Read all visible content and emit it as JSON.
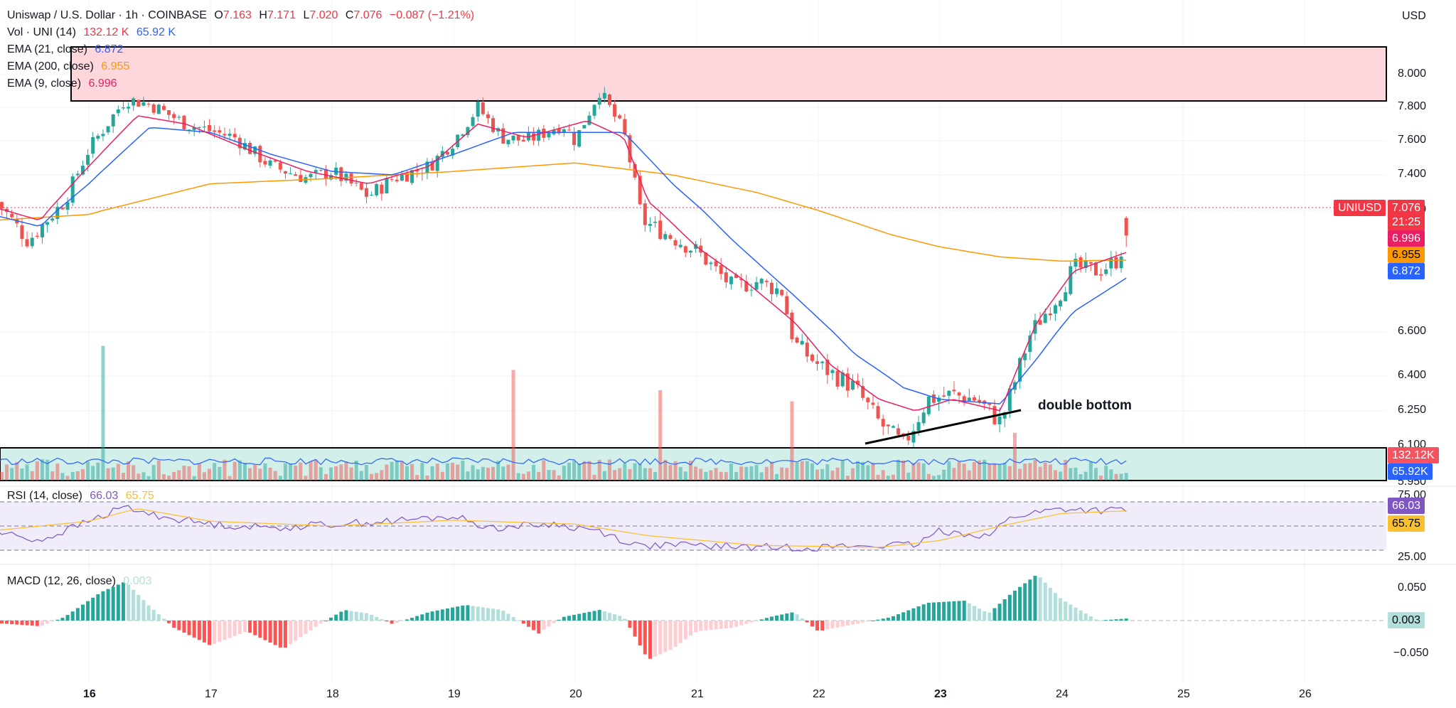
{
  "header": {
    "symbol": "Uniswap / U.S. Dollar · 1h · COINBASE",
    "ohlc": [
      {
        "key": "O",
        "value": "7.163"
      },
      {
        "key": "H",
        "value": "7.171"
      },
      {
        "key": "L",
        "value": "7.020"
      },
      {
        "key": "C",
        "value": "7.076"
      }
    ],
    "change": "−0.087 (−1.21%)",
    "currency": "USD"
  },
  "legends": {
    "vol": {
      "label": "Vol · UNI (14)",
      "v1": "132.12 K",
      "v2": "65.92 K"
    },
    "ema21": {
      "label": "EMA (21, close)",
      "value": "6.872"
    },
    "ema200": {
      "label": "EMA (200, close)",
      "value": "6.955"
    },
    "ema9": {
      "label": "EMA (9, close)",
      "value": "6.996"
    },
    "rsi": {
      "label": "RSI (14, close)",
      "v1": "66.03",
      "v2": "65.75"
    },
    "macd": {
      "label": "MACD (12, 26, close)",
      "value": "0.003"
    }
  },
  "price_axis": [
    "8.000",
    "7.800",
    "7.600",
    "7.400",
    "7.200",
    "6.600",
    "6.400",
    "6.250",
    "6.100",
    "5.950"
  ],
  "tags": {
    "symbol": "UNIUSD",
    "price": "7.076",
    "countdown": "21:25",
    "ema9": "6.996",
    "ema200": "6.955",
    "ema21": "6.872",
    "vol1": "132.12K",
    "vol2": "65.92K",
    "rsi1": "66.03",
    "rsi2": "65.75",
    "macd": "0.003"
  },
  "rsi_axis": [
    "75.00",
    "25.00"
  ],
  "macd_axis": [
    "0.050",
    "−0.050"
  ],
  "x_axis": [
    "16",
    "17",
    "18",
    "19",
    "20",
    "21",
    "22",
    "23",
    "24",
    "25",
    "26"
  ],
  "annotation": "double bottom",
  "colors": {
    "up": "#26a69a",
    "down": "#ef5350",
    "ema9": "#e91e63",
    "ema21": "#2962ff",
    "ema200": "#ff9800",
    "rsi": "#7e57c2",
    "rsi_ma": "#fbc02d",
    "zone": "#fdd7db",
    "tag_price": "#f23645"
  },
  "chart_data": [
    {
      "type": "candlestick",
      "title": "Uniswap / U.S. Dollar · 1h · COINBASE",
      "x": [
        "16",
        "17",
        "18",
        "19",
        "20",
        "21",
        "22",
        "23",
        "24",
        "25",
        "26"
      ],
      "ylim": [
        5.9,
        8.05
      ],
      "close_path": [
        [
          15.2,
          7.28
        ],
        [
          15.5,
          7.05
        ],
        [
          15.8,
          7.25
        ],
        [
          16.0,
          7.55
        ],
        [
          16.3,
          7.85
        ],
        [
          16.5,
          7.82
        ],
        [
          16.8,
          7.7
        ],
        [
          17.2,
          7.62
        ],
        [
          17.5,
          7.45
        ],
        [
          17.8,
          7.38
        ],
        [
          18.0,
          7.42
        ],
        [
          18.3,
          7.28
        ],
        [
          18.5,
          7.38
        ],
        [
          18.8,
          7.45
        ],
        [
          19.0,
          7.6
        ],
        [
          19.2,
          7.8
        ],
        [
          19.4,
          7.62
        ],
        [
          19.6,
          7.6
        ],
        [
          19.9,
          7.7
        ],
        [
          20.0,
          7.6
        ],
        [
          20.2,
          7.9
        ],
        [
          20.4,
          7.65
        ],
        [
          20.55,
          7.15
        ],
        [
          20.7,
          7.1
        ],
        [
          21.0,
          7.0
        ],
        [
          21.3,
          6.82
        ],
        [
          21.5,
          6.85
        ],
        [
          21.7,
          6.8
        ],
        [
          21.8,
          6.55
        ],
        [
          22.0,
          6.45
        ],
        [
          22.3,
          6.35
        ],
        [
          22.5,
          6.2
        ],
        [
          22.7,
          6.1
        ],
        [
          22.9,
          6.3
        ],
        [
          23.1,
          6.32
        ],
        [
          23.3,
          6.3
        ],
        [
          23.5,
          6.2
        ],
        [
          23.6,
          6.35
        ],
        [
          23.75,
          6.6
        ],
        [
          23.9,
          6.72
        ],
        [
          24.0,
          6.8
        ],
        [
          24.1,
          6.92
        ],
        [
          24.3,
          6.9
        ],
        [
          24.45,
          6.95
        ],
        [
          24.55,
          7.08
        ]
      ],
      "ema9_path": [
        [
          15.2,
          7.22
        ],
        [
          15.6,
          7.15
        ],
        [
          16.0,
          7.45
        ],
        [
          16.4,
          7.75
        ],
        [
          16.8,
          7.7
        ],
        [
          17.3,
          7.55
        ],
        [
          17.8,
          7.42
        ],
        [
          18.3,
          7.35
        ],
        [
          18.8,
          7.45
        ],
        [
          19.2,
          7.7
        ],
        [
          19.6,
          7.62
        ],
        [
          20.1,
          7.72
        ],
        [
          20.4,
          7.62
        ],
        [
          20.6,
          7.25
        ],
        [
          21.0,
          7.02
        ],
        [
          21.4,
          6.85
        ],
        [
          21.8,
          6.65
        ],
        [
          22.1,
          6.45
        ],
        [
          22.5,
          6.3
        ],
        [
          22.8,
          6.25
        ],
        [
          23.1,
          6.3
        ],
        [
          23.5,
          6.25
        ],
        [
          23.8,
          6.65
        ],
        [
          24.1,
          6.9
        ],
        [
          24.55,
          6.996
        ]
      ],
      "ema21_path": [
        [
          15.2,
          7.18
        ],
        [
          15.6,
          7.12
        ],
        [
          16.0,
          7.35
        ],
        [
          16.5,
          7.68
        ],
        [
          17.0,
          7.65
        ],
        [
          17.5,
          7.52
        ],
        [
          18.0,
          7.42
        ],
        [
          18.5,
          7.4
        ],
        [
          19.0,
          7.52
        ],
        [
          19.5,
          7.65
        ],
        [
          20.0,
          7.65
        ],
        [
          20.4,
          7.65
        ],
        [
          20.8,
          7.35
        ],
        [
          21.3,
          7.05
        ],
        [
          21.8,
          6.78
        ],
        [
          22.3,
          6.5
        ],
        [
          22.7,
          6.35
        ],
        [
          23.0,
          6.3
        ],
        [
          23.5,
          6.28
        ],
        [
          23.8,
          6.48
        ],
        [
          24.1,
          6.7
        ],
        [
          24.55,
          6.872
        ]
      ],
      "ema200_path": [
        [
          15.2,
          7.15
        ],
        [
          16.0,
          7.18
        ],
        [
          17.0,
          7.35
        ],
        [
          18.0,
          7.38
        ],
        [
          19.0,
          7.42
        ],
        [
          20.0,
          7.47
        ],
        [
          20.8,
          7.4
        ],
        [
          21.5,
          7.3
        ],
        [
          22.0,
          7.2
        ],
        [
          22.6,
          7.08
        ],
        [
          23.0,
          7.02
        ],
        [
          23.5,
          6.97
        ],
        [
          24.0,
          6.95
        ],
        [
          24.55,
          6.955
        ]
      ],
      "zone": [
        7.69,
        8.0
      ],
      "last": {
        "open": 7.163,
        "high": 7.171,
        "low": 7.02,
        "close": 7.076
      }
    },
    {
      "type": "bar",
      "title": "Vol · UNI (14)",
      "series": [
        {
          "name": "Vol · UNI (14)",
          "spikes": [
            [
              16.1,
              345
            ],
            [
              19.5,
              280
            ],
            [
              20.7,
              225
            ],
            [
              21.8,
              195
            ],
            [
              23.6,
              110
            ]
          ]
        }
      ],
      "last": [
        132.12,
        65.92
      ]
    },
    {
      "type": "line",
      "title": "RSI (14, close)",
      "ylim": [
        20,
        80
      ],
      "levels": [
        75,
        25
      ],
      "path": [
        [
          15.2,
          45
        ],
        [
          15.6,
          35
        ],
        [
          16.0,
          55
        ],
        [
          16.3,
          70
        ],
        [
          16.5,
          62
        ],
        [
          17.0,
          52
        ],
        [
          17.5,
          48
        ],
        [
          18.0,
          52
        ],
        [
          18.5,
          55
        ],
        [
          19.0,
          60
        ],
        [
          19.3,
          48
        ],
        [
          19.8,
          52
        ],
        [
          20.2,
          45
        ],
        [
          20.5,
          30
        ],
        [
          21.0,
          30
        ],
        [
          21.5,
          28
        ],
        [
          22.0,
          28
        ],
        [
          22.5,
          30
        ],
        [
          22.8,
          30
        ],
        [
          23.0,
          45
        ],
        [
          23.4,
          40
        ],
        [
          23.6,
          60
        ],
        [
          24.0,
          68
        ],
        [
          24.3,
          66
        ],
        [
          24.55,
          66.03
        ]
      ],
      "ma_path": [
        [
          15.2,
          45
        ],
        [
          16.0,
          55
        ],
        [
          16.4,
          68
        ],
        [
          17.0,
          55
        ],
        [
          18.0,
          50
        ],
        [
          19.0,
          56
        ],
        [
          20.0,
          52
        ],
        [
          20.6,
          40
        ],
        [
          21.5,
          30
        ],
        [
          22.5,
          28
        ],
        [
          23.0,
          35
        ],
        [
          23.5,
          50
        ],
        [
          24.0,
          63
        ],
        [
          24.55,
          65.75
        ]
      ]
    },
    {
      "type": "bar",
      "title": "MACD (12, 26, close)",
      "ylim": [
        -0.08,
        0.07
      ],
      "series": [
        {
          "name": "MACD (12, 26, close)",
          "path": [
            [
              15.2,
              -0.003
            ],
            [
              15.6,
              -0.008
            ],
            [
              15.8,
              0.005
            ],
            [
              16.1,
              0.04
            ],
            [
              16.3,
              0.055
            ],
            [
              16.5,
              0.02
            ],
            [
              16.7,
              -0.01
            ],
            [
              17.0,
              -0.035
            ],
            [
              17.3,
              -0.015
            ],
            [
              17.6,
              -0.04
            ],
            [
              17.9,
              -0.005
            ],
            [
              18.1,
              0.015
            ],
            [
              18.3,
              0.01
            ],
            [
              18.5,
              -0.005
            ],
            [
              18.8,
              0.012
            ],
            [
              19.1,
              0.022
            ],
            [
              19.4,
              0.015
            ],
            [
              19.7,
              -0.018
            ],
            [
              19.9,
              0.005
            ],
            [
              20.2,
              0.015
            ],
            [
              20.4,
              0.005
            ],
            [
              20.6,
              -0.055
            ],
            [
              20.8,
              -0.04
            ],
            [
              21.0,
              -0.015
            ],
            [
              21.3,
              -0.01
            ],
            [
              21.6,
              0.005
            ],
            [
              21.8,
              0.012
            ],
            [
              22.0,
              -0.015
            ],
            [
              22.3,
              -0.005
            ],
            [
              22.6,
              0.005
            ],
            [
              22.9,
              0.025
            ],
            [
              23.2,
              0.028
            ],
            [
              23.4,
              0.01
            ],
            [
              23.6,
              0.04
            ],
            [
              23.8,
              0.065
            ],
            [
              24.0,
              0.03
            ],
            [
              24.3,
              0.0
            ],
            [
              24.55,
              0.003
            ]
          ]
        }
      ]
    }
  ]
}
